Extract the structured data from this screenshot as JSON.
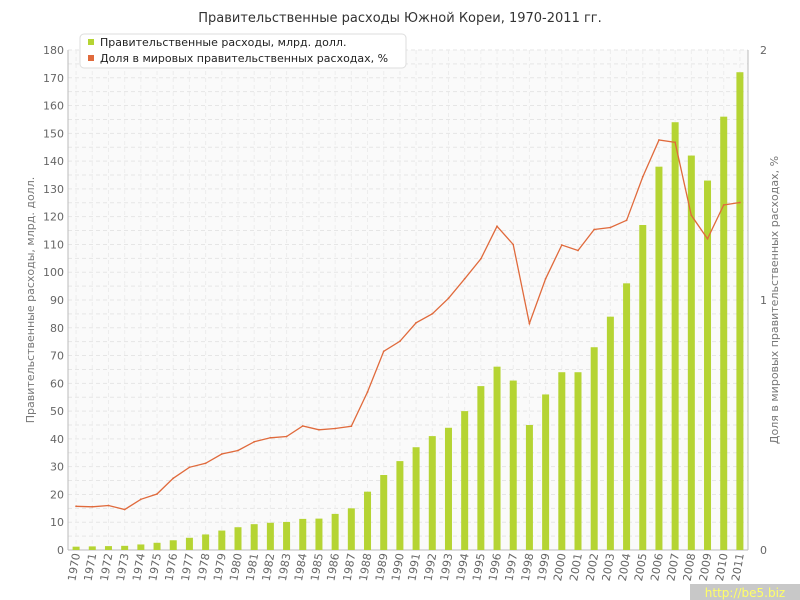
{
  "chart_data": {
    "type": "bar",
    "title": "Правительственные расходы Южной Кореи, 1970-2011 гг.",
    "ylabel": "Правительственные расходы, млрд. долл.",
    "y2label": "Доля в мировых правительственных расходах, %",
    "ylim": [
      0,
      180
    ],
    "y2lim": [
      0,
      2
    ],
    "yticks": [
      "0",
      "10",
      "20",
      "30",
      "40",
      "50",
      "60",
      "70",
      "80",
      "90",
      "100",
      "110",
      "120",
      "130",
      "140",
      "150",
      "160",
      "170",
      "180"
    ],
    "y2ticks": [
      "0",
      "1",
      "2"
    ],
    "grid": true,
    "legend_position": "top-left",
    "categories": [
      "1970",
      "1971",
      "1972",
      "1973",
      "1974",
      "1975",
      "1976",
      "1977",
      "1978",
      "1979",
      "1980",
      "1981",
      "1982",
      "1983",
      "1984",
      "1985",
      "1986",
      "1987",
      "1988",
      "1989",
      "1990",
      "1991",
      "1992",
      "1993",
      "1994",
      "1995",
      "1996",
      "1997",
      "1998",
      "1999",
      "2000",
      "2001",
      "2002",
      "2003",
      "2004",
      "2005",
      "2006",
      "2007",
      "2008",
      "2009",
      "2010",
      "2011"
    ],
    "series": [
      {
        "name": "Правительственные расходы, млрд. долл.",
        "type": "bar",
        "axis": "left",
        "color": "#b5d433",
        "values": [
          1.2,
          1.3,
          1.4,
          1.5,
          2.0,
          2.6,
          3.5,
          4.4,
          5.6,
          7.0,
          8.2,
          9.3,
          9.8,
          10.1,
          11.2,
          11.3,
          13.0,
          15.0,
          21.0,
          27.0,
          32.0,
          37.0,
          41.0,
          44.0,
          50.0,
          59.0,
          66.0,
          61.0,
          45.0,
          56.0,
          64.0,
          64.0,
          73.0,
          84.0,
          96.0,
          117.0,
          138.0,
          154.0,
          142.0,
          133.0,
          156.0,
          172.0
        ]
      },
      {
        "name": "Доля в мировых правительственных расходах, %",
        "type": "line",
        "axis": "right",
        "color": "#e06a3c",
        "values": [
          0.175,
          0.173,
          0.178,
          0.162,
          0.203,
          0.224,
          0.287,
          0.331,
          0.347,
          0.384,
          0.398,
          0.433,
          0.449,
          0.454,
          0.496,
          0.481,
          0.486,
          0.495,
          0.632,
          0.795,
          0.835,
          0.909,
          0.945,
          1.007,
          1.085,
          1.165,
          1.295,
          1.222,
          0.906,
          1.085,
          1.22,
          1.198,
          1.282,
          1.29,
          1.319,
          1.493,
          1.64,
          1.631,
          1.339,
          1.245,
          1.38,
          1.39
        ]
      }
    ]
  },
  "watermark": "http://be5.biz"
}
